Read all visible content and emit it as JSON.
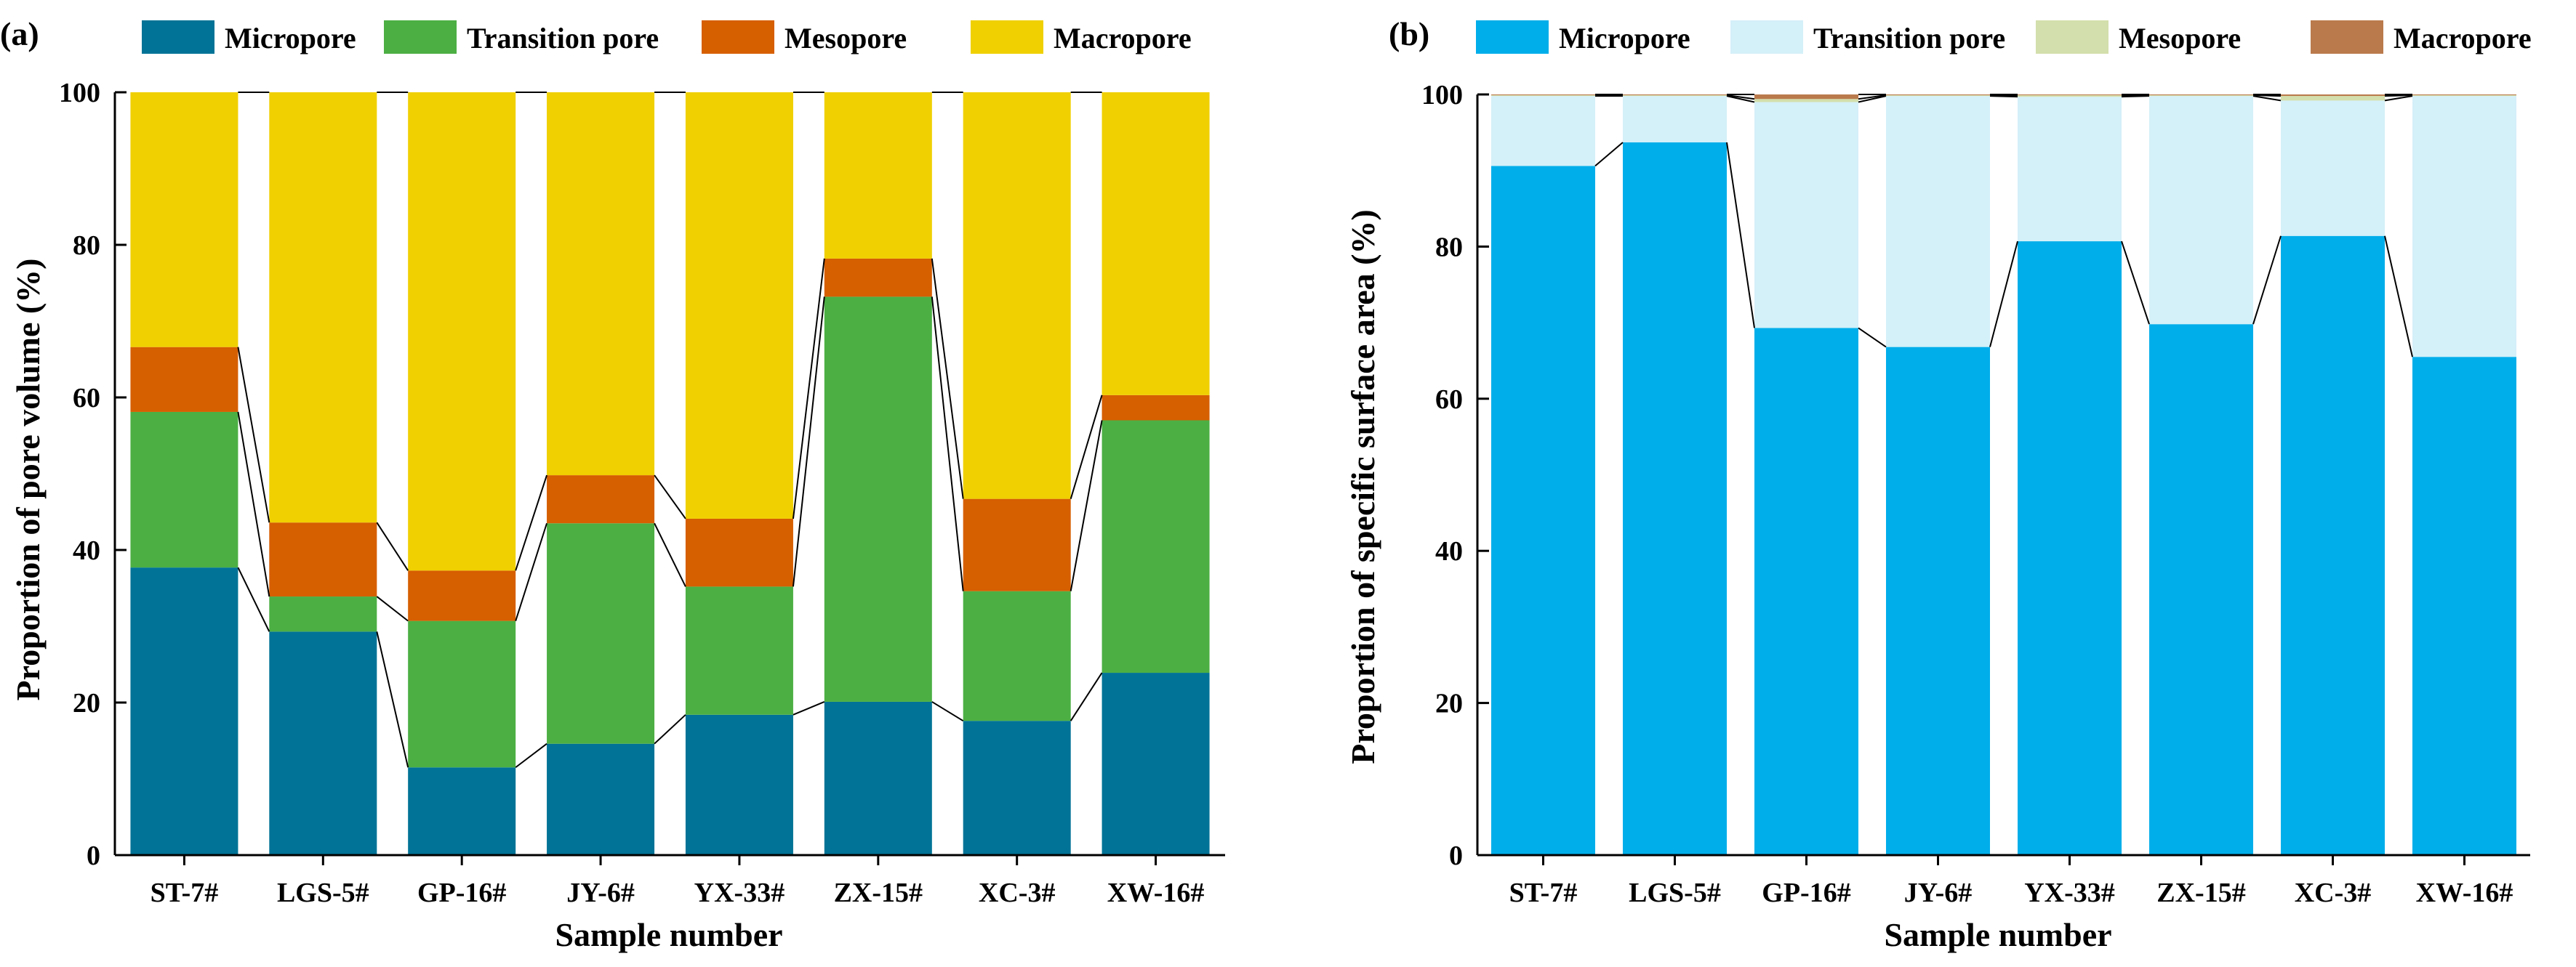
{
  "chart_data": [
    {
      "panel": "(a)",
      "type": "bar",
      "stacked": true,
      "categories": [
        "ST-7#",
        "LGS-5#",
        "GP-16#",
        "JY-6#",
        "YX-33#",
        "ZX-15#",
        "XC-3#",
        "XW-16#"
      ],
      "series": [
        {
          "name": "Micropore",
          "color": "#007396",
          "values": [
            37.7,
            29.3,
            11.5,
            14.6,
            18.4,
            20.1,
            17.6,
            23.9
          ]
        },
        {
          "name": "Transition pore",
          "color": "#4caf43",
          "values": [
            20.4,
            4.6,
            19.2,
            28.9,
            16.8,
            53.1,
            17.0,
            33.1
          ]
        },
        {
          "name": "Mesopore",
          "color": "#d65f00",
          "values": [
            8.5,
            9.7,
            6.6,
            6.3,
            8.9,
            5.0,
            12.1,
            3.3
          ]
        },
        {
          "name": "Macropore",
          "color": "#f0d000",
          "values": [
            33.4,
            56.4,
            62.7,
            50.2,
            55.9,
            21.8,
            53.3,
            39.7
          ]
        }
      ],
      "xlabel": "Sample number",
      "ylabel": "Proportion of pore volume (%)",
      "ylim": [
        0,
        100
      ],
      "yticks": [
        0,
        20,
        40,
        60,
        80,
        100
      ],
      "legend": "top"
    },
    {
      "panel": "(b)",
      "type": "bar",
      "stacked": true,
      "categories": [
        "ST-7#",
        "LGS-5#",
        "GP-16#",
        "JY-6#",
        "YX-33#",
        "ZX-15#",
        "XC-3#",
        "XW-16#"
      ],
      "series": [
        {
          "name": "Micropore",
          "color": "#00aeea",
          "values": [
            90.6,
            93.7,
            69.3,
            66.8,
            80.7,
            69.8,
            81.4,
            65.5
          ]
        },
        {
          "name": "Transition pore",
          "color": "#d4f0f9",
          "values": [
            9.2,
            6.1,
            29.7,
            33.0,
            19.0,
            30.0,
            17.8,
            34.3
          ]
        },
        {
          "name": "Mesopore",
          "color": "#d3dfac",
          "values": [
            0.1,
            0.1,
            0.4,
            0.1,
            0.2,
            0.1,
            0.6,
            0.1
          ]
        },
        {
          "name": "Macropore",
          "color": "#ba7a4c",
          "values": [
            0.1,
            0.1,
            0.6,
            0.1,
            0.1,
            0.1,
            0.2,
            0.1
          ]
        }
      ],
      "xlabel": "Sample number",
      "ylabel": "Proportion of specific surface area (%)",
      "ylim": [
        0,
        100
      ],
      "yticks": [
        0,
        20,
        40,
        60,
        80,
        100
      ],
      "legend": "top"
    }
  ]
}
